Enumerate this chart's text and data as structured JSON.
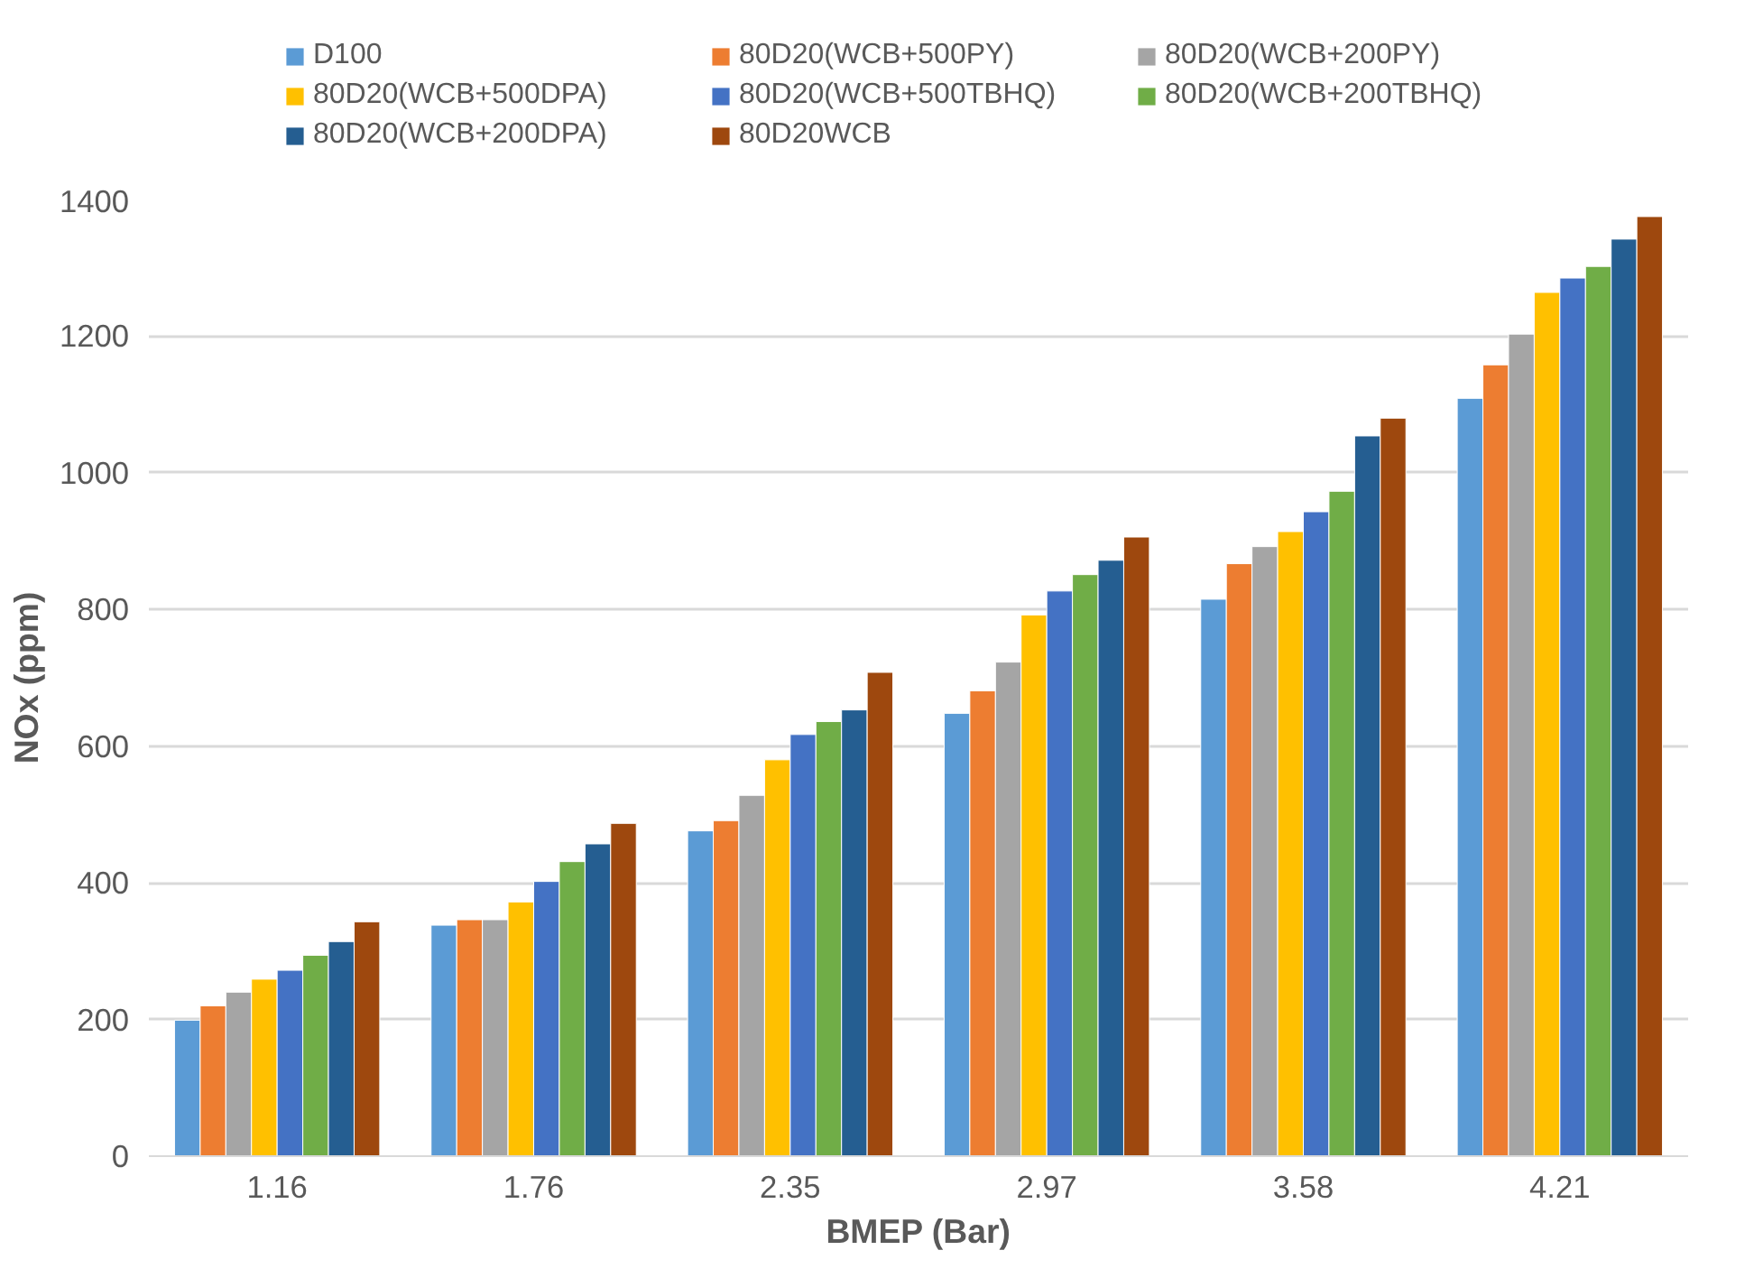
{
  "chart_data": {
    "type": "bar",
    "xlabel": "BMEP (Bar)",
    "ylabel": "NOx (ppm)",
    "categories": [
      "1.16",
      "1.76",
      "2.35",
      "2.97",
      "3.58",
      "4.21"
    ],
    "ylim": [
      0,
      1400
    ],
    "yticks": [
      0,
      200,
      400,
      600,
      800,
      1000,
      1200,
      1400
    ],
    "grid": "y",
    "legend": "top",
    "series": [
      {
        "name": "D100",
        "color": "#5b9bd5",
        "values": [
          199,
          338,
          476,
          648,
          815,
          1109
        ]
      },
      {
        "name": "80D20(WCB+500PY)",
        "color": "#ed7d31",
        "values": [
          220,
          346,
          491,
          681,
          867,
          1158
        ]
      },
      {
        "name": "80D20(WCB+200PY)",
        "color": "#a5a5a5",
        "values": [
          240,
          346,
          528,
          723,
          892,
          1203
        ]
      },
      {
        "name": "80D20(WCB+500DPA)",
        "color": "#ffc000",
        "values": [
          259,
          372,
          580,
          792,
          914,
          1264
        ]
      },
      {
        "name": "80D20(WCB+500TBHQ)",
        "color": "#4472c4",
        "values": [
          272,
          402,
          617,
          827,
          943,
          1285
        ]
      },
      {
        "name": "80D20(WCB+200TBHQ)",
        "color": "#70ad47",
        "values": [
          294,
          431,
          636,
          851,
          973,
          1302
        ]
      },
      {
        "name": "80D20(WCB+200DPA)",
        "color": "#255e91",
        "values": [
          314,
          457,
          653,
          872,
          1054,
          1342
        ]
      },
      {
        "name": "80D20WCB",
        "color": "#9e480e",
        "values": [
          343,
          487,
          708,
          906,
          1080,
          1375
        ]
      }
    ]
  }
}
